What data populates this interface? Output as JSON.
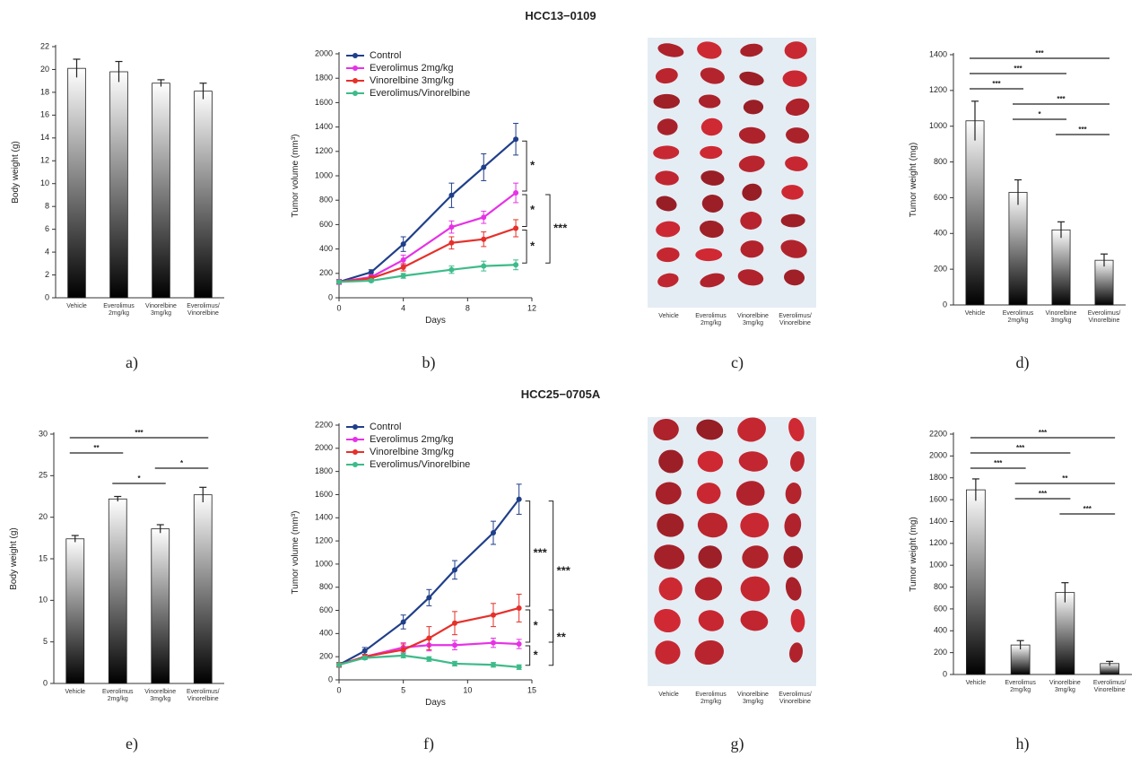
{
  "figure": {
    "row_titles": [
      "HCC13−0109",
      "HCC25−0705A"
    ]
  },
  "chart_data": [
    {
      "type": "bar",
      "label": "a)",
      "ylabel": "Body weight (g)",
      "categories": [
        "Vehicle",
        "Everolimus\n2mg/kg",
        "Vinorelbine\n3mg/kg",
        "Everolimus/\nVinorelbine"
      ],
      "values": [
        20.1,
        19.8,
        18.8,
        18.1
      ],
      "errors": [
        0.8,
        0.9,
        0.3,
        0.7
      ],
      "color": "#000000",
      "ylim": [
        0,
        22
      ],
      "yticks": [
        0,
        2,
        4,
        6,
        8,
        10,
        12,
        14,
        16,
        18,
        20,
        22
      ],
      "significance": []
    },
    {
      "type": "line",
      "label": "b)",
      "ylabel": "Tumor volume (mm³)",
      "xlabel": "Days",
      "x": [
        0,
        2,
        4,
        7,
        9,
        11
      ],
      "xlim": [
        0,
        12
      ],
      "xticks": [
        0,
        4,
        8,
        12
      ],
      "ylim": [
        0,
        2000
      ],
      "yticks": [
        0,
        200,
        400,
        600,
        800,
        1000,
        1200,
        1400,
        1600,
        1800,
        2000
      ],
      "legend": "upper left",
      "series": [
        {
          "name": "Control",
          "color": "#203f8a",
          "values": [
            130,
            210,
            440,
            840,
            1070,
            1300
          ],
          "errors": [
            20,
            20,
            60,
            100,
            110,
            130
          ]
        },
        {
          "name": "Everolimus 2mg/kg",
          "color": "#e632e6",
          "values": [
            130,
            170,
            310,
            580,
            660,
            860
          ],
          "errors": [
            20,
            20,
            40,
            50,
            50,
            80
          ]
        },
        {
          "name": "Vinorelbine 3mg/kg",
          "color": "#e6302a",
          "values": [
            130,
            160,
            250,
            450,
            480,
            570
          ],
          "errors": [
            15,
            20,
            30,
            50,
            60,
            70
          ]
        },
        {
          "name": "Everolimus/Vinorelbine",
          "color": "#3dbb8a",
          "values": [
            130,
            140,
            180,
            230,
            260,
            270
          ],
          "errors": [
            10,
            10,
            20,
            30,
            40,
            40
          ]
        }
      ],
      "brackets": [
        {
          "series": [
            0,
            1
          ],
          "label": "*"
        },
        {
          "series": [
            1,
            2
          ],
          "label": "*"
        },
        {
          "series": [
            2,
            3
          ],
          "label": "*"
        },
        {
          "series": [
            1,
            3
          ],
          "label": "***"
        }
      ]
    },
    {
      "type": "image",
      "label": "c)",
      "categories": [
        "Vehicle",
        "Everolimus\n2mg/kg",
        "Vinorelbine\n3mg/kg",
        "Everolimus/\nVinorelbine"
      ]
    },
    {
      "type": "bar",
      "label": "d)",
      "ylabel": "Tumor weight (mg)",
      "categories": [
        "Vehicle",
        "Everolimus\n2mg/kg",
        "Vinorelbine\n3mg/kg",
        "Everolimus/\nVinorelbine"
      ],
      "values": [
        1030,
        630,
        420,
        250
      ],
      "errors": [
        110,
        70,
        45,
        35
      ],
      "color": "#000000",
      "ylim": [
        0,
        1400
      ],
      "yticks": [
        0,
        200,
        400,
        600,
        800,
        1000,
        1200,
        1400
      ],
      "significance": [
        {
          "pair": [
            0,
            3
          ],
          "label": "***"
        },
        {
          "pair": [
            0,
            2
          ],
          "label": "***"
        },
        {
          "pair": [
            0,
            1
          ],
          "label": "***"
        },
        {
          "pair": [
            1,
            3
          ],
          "label": "***"
        },
        {
          "pair": [
            1,
            2
          ],
          "label": "*"
        },
        {
          "pair": [
            2,
            3
          ],
          "label": "***"
        }
      ]
    },
    {
      "type": "bar",
      "label": "e)",
      "ylabel": "Body weight (g)",
      "categories": [
        "Vehicle",
        "Everolimus\n2mg/kg",
        "Vinorelbine\n3mg/kg",
        "Everolimus/\nVinorelbine"
      ],
      "values": [
        17.4,
        22.2,
        18.6,
        22.7
      ],
      "errors": [
        0.4,
        0.3,
        0.5,
        0.9
      ],
      "color": "#000000",
      "ylim": [
        0,
        30
      ],
      "yticks": [
        0,
        5,
        10,
        15,
        20,
        25,
        30
      ],
      "significance": [
        {
          "pair": [
            0,
            3
          ],
          "label": "***"
        },
        {
          "pair": [
            0,
            1
          ],
          "label": "**"
        },
        {
          "pair": [
            2,
            3
          ],
          "label": "*"
        },
        {
          "pair": [
            1,
            2
          ],
          "label": "*"
        }
      ]
    },
    {
      "type": "line",
      "label": "f)",
      "ylabel": "Tumor volume (mm³)",
      "xlabel": "Days",
      "x": [
        0,
        2,
        5,
        7,
        9,
        12,
        14
      ],
      "xlim": [
        0,
        15
      ],
      "xticks": [
        0,
        5,
        10,
        15
      ],
      "ylim": [
        0,
        2200
      ],
      "yticks": [
        0,
        200,
        400,
        600,
        800,
        1000,
        1200,
        1400,
        1600,
        1800,
        2000,
        2200
      ],
      "legend": "upper left",
      "series": [
        {
          "name": "Control",
          "color": "#203f8a",
          "values": [
            130,
            250,
            500,
            710,
            950,
            1270,
            1560
          ],
          "errors": [
            20,
            30,
            60,
            70,
            80,
            100,
            130
          ]
        },
        {
          "name": "Everolimus 2mg/kg",
          "color": "#e632e6",
          "values": [
            130,
            200,
            280,
            300,
            300,
            320,
            310
          ],
          "errors": [
            15,
            20,
            40,
            50,
            40,
            40,
            40
          ]
        },
        {
          "name": "Vinorelbine 3mg/kg",
          "color": "#e6302a",
          "values": [
            130,
            200,
            260,
            360,
            490,
            560,
            620
          ],
          "errors": [
            20,
            20,
            50,
            100,
            100,
            100,
            120
          ]
        },
        {
          "name": "Everolimus/Vinorelbine",
          "color": "#3dbb8a",
          "values": [
            130,
            190,
            210,
            180,
            140,
            130,
            110
          ],
          "errors": [
            10,
            15,
            20,
            20,
            20,
            20,
            20
          ]
        }
      ],
      "brackets": [
        {
          "series": [
            0,
            2
          ],
          "label": "***"
        },
        {
          "series": [
            2,
            1
          ],
          "label": "*"
        },
        {
          "series": [
            1,
            3
          ],
          "label": "*"
        },
        {
          "series": [
            0,
            1
          ],
          "label": "***"
        },
        {
          "series": [
            2,
            3
          ],
          "label": "**"
        }
      ]
    },
    {
      "type": "image",
      "label": "g)",
      "categories": [
        "Vehicle",
        "Everolimus\n2mg/kg",
        "Vinorelbine\n3mg/kg",
        "Everolimus/\nVinorelbine"
      ]
    },
    {
      "type": "bar",
      "label": "h)",
      "ylabel": "Tumor weight (mg)",
      "categories": [
        "Vehicle",
        "Everolimus\n2mg/kg",
        "Vinorelbine\n3mg/kg",
        "Everolimus/\nVinorelbine"
      ],
      "values": [
        1690,
        270,
        750,
        100
      ],
      "errors": [
        100,
        40,
        90,
        20
      ],
      "color": "#000000",
      "ylim": [
        0,
        2200
      ],
      "yticks": [
        0,
        200,
        400,
        600,
        800,
        1000,
        1200,
        1400,
        1600,
        1800,
        2000,
        2200
      ],
      "significance": [
        {
          "pair": [
            0,
            3
          ],
          "label": "***"
        },
        {
          "pair": [
            0,
            2
          ],
          "label": "***"
        },
        {
          "pair": [
            0,
            1
          ],
          "label": "***"
        },
        {
          "pair": [
            1,
            3
          ],
          "label": "**"
        },
        {
          "pair": [
            1,
            2
          ],
          "label": "***"
        },
        {
          "pair": [
            2,
            3
          ],
          "label": "***"
        }
      ]
    }
  ]
}
